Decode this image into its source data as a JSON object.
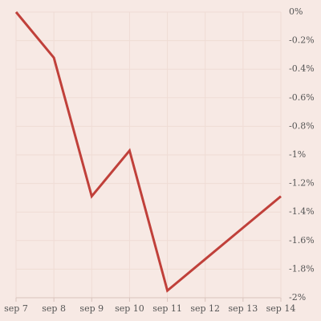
{
  "chart_data": {
    "type": "line",
    "categories": [
      "sep 7",
      "sep 8",
      "sep 9",
      "sep 10",
      "sep 11",
      "sep 12",
      "sep 13",
      "sep 14"
    ],
    "series": [
      {
        "color": "#c0403a",
        "values": [
          0,
          -0.32,
          -1.29,
          -0.97,
          -1.95,
          -1.73,
          -1.51,
          -1.29
        ]
      }
    ],
    "ylim": [
      -2,
      0
    ],
    "yticks": [
      {
        "value": 0,
        "label": "0%"
      },
      {
        "value": -0.2,
        "label": "-0.2%"
      },
      {
        "value": -0.4,
        "label": "-0.4%"
      },
      {
        "value": -0.6,
        "label": "-0.6%"
      },
      {
        "value": -0.8,
        "label": "-0.8%"
      },
      {
        "value": -1,
        "label": "-1%"
      },
      {
        "value": -1.2,
        "label": "-1.2%"
      },
      {
        "value": -1.4,
        "label": "-1.4%"
      },
      {
        "value": -1.6,
        "label": "-1.6%"
      },
      {
        "value": -1.8,
        "label": "-1.8%"
      },
      {
        "value": -2,
        "label": "-2%"
      }
    ],
    "grid": true,
    "y_axis_side": "right"
  }
}
